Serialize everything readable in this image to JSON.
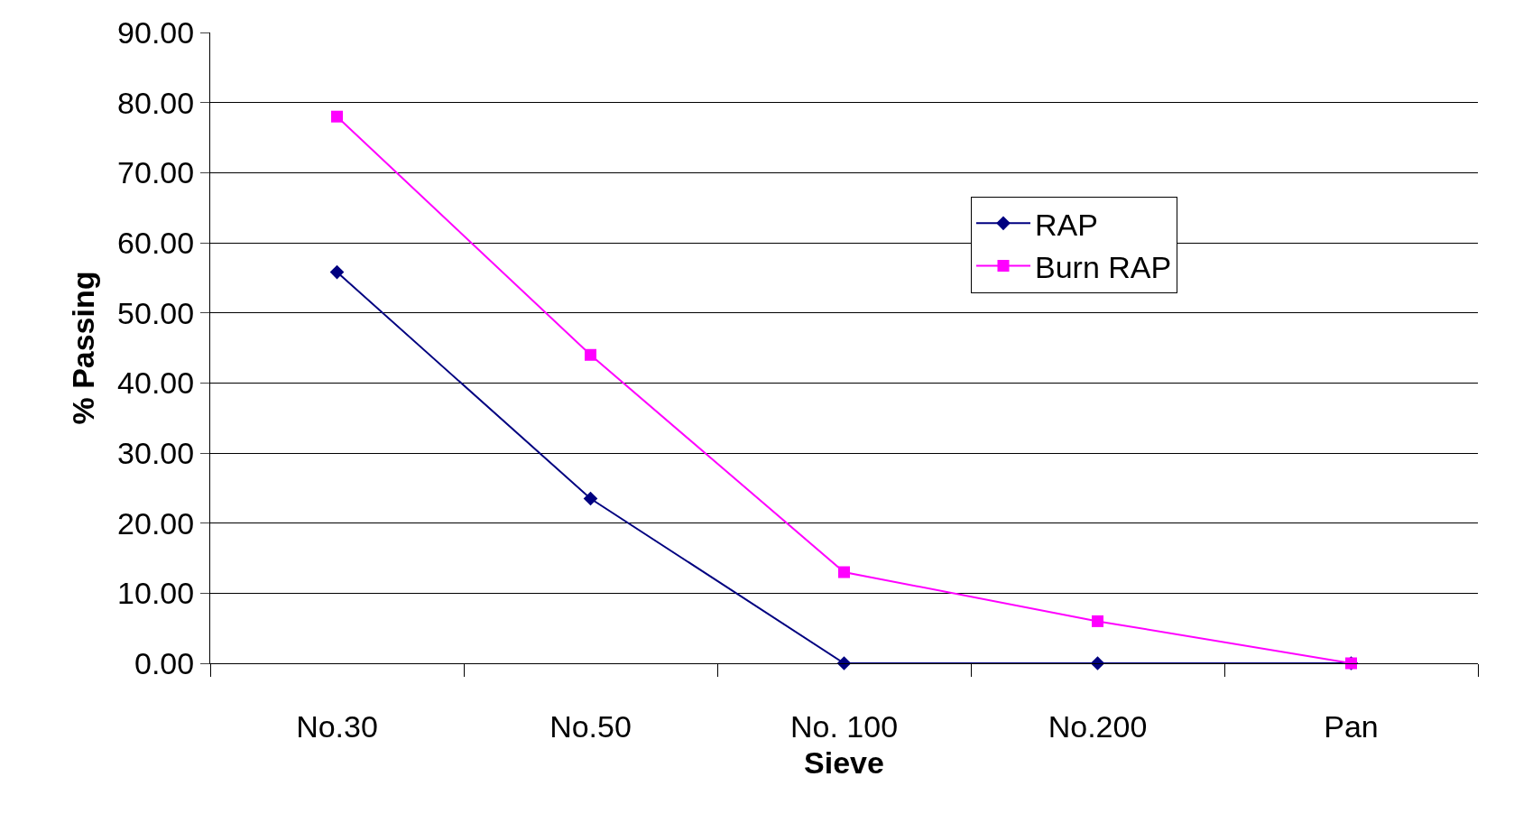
{
  "chart_data": {
    "type": "line",
    "xlabel": "Sieve",
    "ylabel": "% Passing",
    "categories": [
      "No.30",
      "No.50",
      "No. 100",
      "No.200",
      "Pan"
    ],
    "series": [
      {
        "name": "RAP",
        "color": "#000080",
        "values": [
          55.8,
          23.5,
          0,
          0,
          0
        ],
        "marker": "diamond"
      },
      {
        "name": "Burn RAP",
        "color": "#ff00ff",
        "values": [
          78,
          44,
          13,
          6,
          0
        ],
        "marker": "square"
      }
    ],
    "ylim": [
      0,
      90
    ],
    "yticks": [
      {
        "value": 0,
        "label": "0.00"
      },
      {
        "value": 10,
        "label": "10.00"
      },
      {
        "value": 20,
        "label": "20.00"
      },
      {
        "value": 30,
        "label": "30.00"
      },
      {
        "value": 40,
        "label": "40.00"
      },
      {
        "value": 50,
        "label": "50.00"
      },
      {
        "value": 60,
        "label": "60.00"
      },
      {
        "value": 70,
        "label": "70.00"
      },
      {
        "value": 80,
        "label": "80.00"
      },
      {
        "value": 90,
        "label": "90.00"
      }
    ],
    "grid": "y",
    "legend": "right",
    "line_style": "solid"
  }
}
